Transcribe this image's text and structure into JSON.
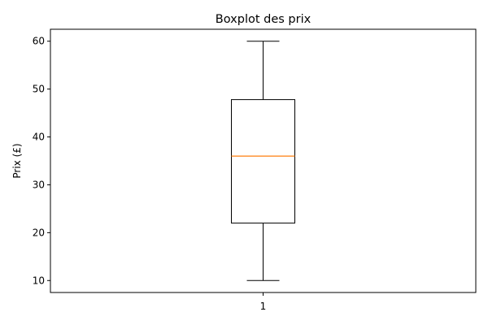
{
  "chart_data": {
    "type": "box",
    "title": "Boxplot des prix",
    "xlabel": "",
    "ylabel": "Prix (£)",
    "categories": [
      "1"
    ],
    "boxes": [
      {
        "category": "1",
        "whisker_low": 10,
        "q1": 22,
        "median": 36,
        "q3": 47.8,
        "whisker_high": 60
      }
    ],
    "ylim": [
      7.5,
      62.5
    ],
    "yticks": [
      10,
      20,
      30,
      40,
      50,
      60
    ],
    "grid": false,
    "legend": "none",
    "colors": {
      "box": "#000000",
      "median": "#ff7f0e",
      "axes": "#000000"
    }
  }
}
